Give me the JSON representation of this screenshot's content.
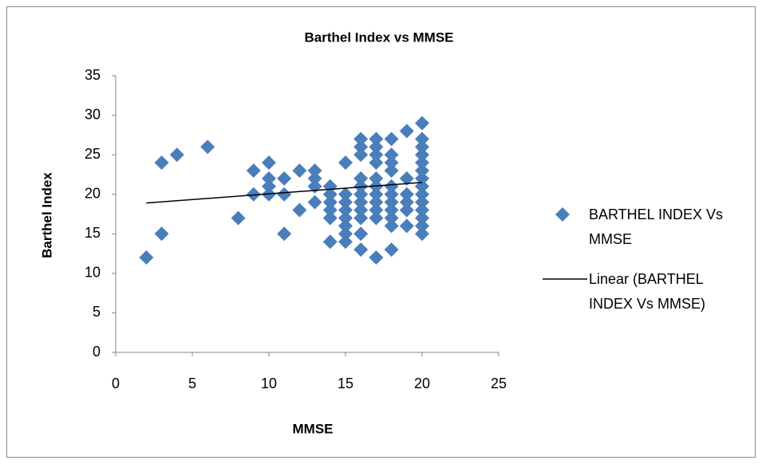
{
  "chart_data": {
    "type": "scatter",
    "title": "Barthel Index vs MMSE",
    "x_label": "MMSE",
    "y_label": "Barthel Index",
    "xlim": [
      0,
      25
    ],
    "xticks": [
      0,
      5,
      10,
      15,
      20,
      25
    ],
    "ylim": [
      0,
      35
    ],
    "yticks": [
      0,
      5,
      10,
      15,
      20,
      25,
      30,
      35
    ],
    "grid": false,
    "legend": "right",
    "series": [
      {
        "name": "BARTHEL INDEX Vs MMSE",
        "color": "#4a7ebb",
        "type": "scatter",
        "x": [
          2,
          3,
          3,
          4,
          6,
          8,
          9,
          9,
          10,
          10,
          10,
          10,
          11,
          11,
          11,
          12,
          12,
          13,
          13,
          13,
          13,
          14,
          14,
          14,
          14,
          14,
          14,
          15,
          15,
          15,
          15,
          15,
          15,
          15,
          15,
          16,
          16,
          16,
          16,
          16,
          16,
          16,
          16,
          16,
          16,
          16,
          17,
          17,
          17,
          17,
          17,
          17,
          17,
          17,
          17,
          17,
          17,
          18,
          18,
          18,
          18,
          18,
          18,
          18,
          18,
          18,
          18,
          18,
          19,
          19,
          19,
          19,
          19,
          19,
          20,
          20,
          20,
          20,
          20,
          20,
          20,
          20,
          20,
          20,
          20,
          20,
          20,
          20
        ],
        "values": [
          12,
          24,
          15,
          25,
          26,
          17,
          23,
          20,
          24,
          22,
          20,
          21,
          22,
          20,
          15,
          23,
          18,
          23,
          22,
          21,
          19,
          21,
          20,
          19,
          18,
          17,
          14,
          24,
          20,
          19,
          18,
          17,
          16,
          15,
          14,
          27,
          26,
          25,
          22,
          21,
          20,
          19,
          18,
          17,
          15,
          13,
          27,
          26,
          25,
          24,
          22,
          21,
          20,
          19,
          18,
          17,
          12,
          27,
          25,
          24,
          23,
          21,
          20,
          19,
          18,
          17,
          16,
          13,
          28,
          22,
          20,
          19,
          18,
          16,
          29,
          27,
          26,
          25,
          24,
          23,
          22,
          21,
          20,
          19,
          18,
          17,
          16,
          15
        ]
      },
      {
        "name": "Linear (BARTHEL INDEX Vs MMSE)",
        "color": "#000000",
        "type": "line",
        "x": [
          2,
          20
        ],
        "values": [
          18.9,
          21.5
        ]
      }
    ]
  }
}
